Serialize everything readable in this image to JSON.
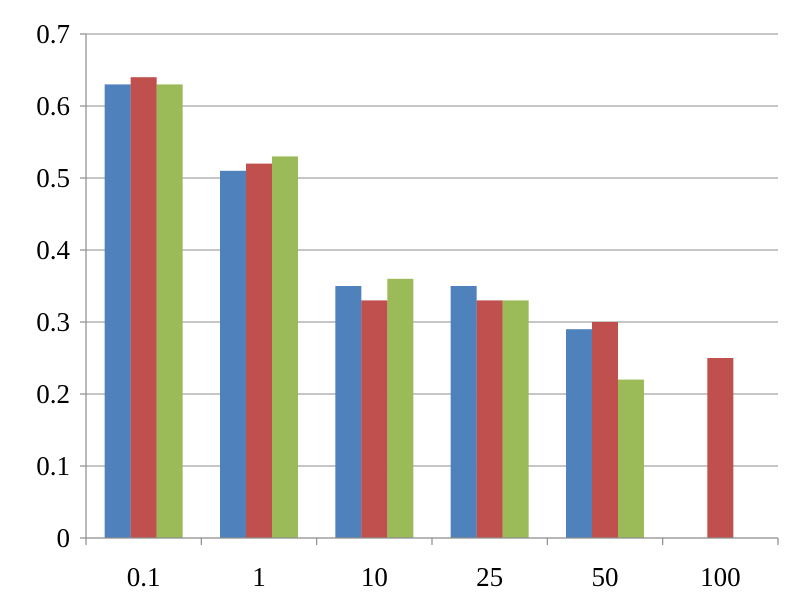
{
  "chart_data": {
    "type": "bar",
    "title": "",
    "xlabel": "",
    "ylabel": "",
    "categories": [
      "0.1",
      "1",
      "10",
      "25",
      "50",
      "100"
    ],
    "series": [
      {
        "color": "#4F81BD",
        "values": [
          0.63,
          0.51,
          0.35,
          0.35,
          0.29,
          null
        ]
      },
      {
        "color": "#C0504D",
        "values": [
          0.64,
          0.52,
          0.33,
          0.33,
          0.3,
          0.25
        ]
      },
      {
        "color": "#9BBB59",
        "values": [
          0.63,
          0.53,
          0.36,
          0.33,
          0.22,
          null
        ]
      }
    ],
    "ylim": [
      0,
      0.7
    ],
    "yticks": [
      "0",
      "0.1",
      "0.2",
      "0.3",
      "0.4",
      "0.5",
      "0.6",
      "0.7"
    ],
    "grid": true,
    "legend": "none"
  }
}
